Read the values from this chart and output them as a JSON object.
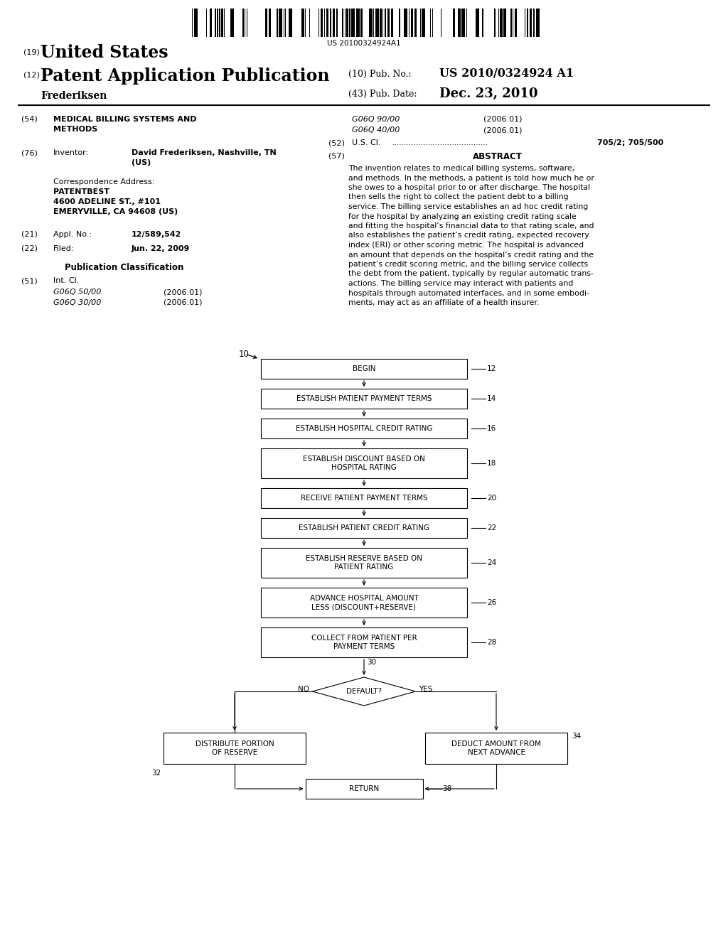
{
  "bg_color": "#ffffff",
  "barcode_text": "US 20100324924A1",
  "header_19_num": "(19)",
  "header_19_text": "United States",
  "header_12_num": "(12)",
  "header_12_text": "Patent Application Publication",
  "pub_no_label": "(10) Pub. No.:",
  "pub_no_value": "US 2010/0324924 A1",
  "author": "Frederiksen",
  "pub_date_label": "(43) Pub. Date:",
  "pub_date_value": "Dec. 23, 2010",
  "s54_num": "(54)",
  "s54_title1": "MEDICAL BILLING SYSTEMS AND",
  "s54_title2": "METHODS",
  "class1_code": "G06Q 90/00",
  "class1_year": "(2006.01)",
  "class2_code": "G06Q 40/00",
  "class2_year": "(2006.01)",
  "s52_num": "(52)",
  "s52_label": "U.S. Cl.",
  "s52_dots": "........................................",
  "s52_value": "705/2; 705/500",
  "s76_num": "(76)",
  "s76_label": "Inventor:",
  "s76_name1": "David Frederiksen, Nashville, TN",
  "s76_name2": "(US)",
  "corr_label": "Correspondence Address:",
  "corr1": "PATENTBEST",
  "corr2": "4600 ADELINE ST., #101",
  "corr3": "EMERYVILLE, CA 94608 (US)",
  "s57_num": "(57)",
  "s57_title": "ABSTRACT",
  "abstract_lines": [
    "The invention relates to medical billing systems, software,",
    "and methods. In the methods, a patient is told how much he or",
    "she owes to a hospital prior to or after discharge. The hospital",
    "then sells the right to collect the patient debt to a billing",
    "service. The billing service establishes an ad hoc credit rating",
    "for the hospital by analyzing an existing credit rating scale",
    "and fitting the hospital’s financial data to that rating scale, and",
    "also establishes the patient’s credit rating, expected recovery",
    "index (ERI) or other scoring metric. The hospital is advanced",
    "an amount that depends on the hospital’s credit rating and the",
    "patient’s credit scoring metric, and the billing service collects",
    "the debt from the patient, typically by regular automatic trans-",
    "actions. The billing service may interact with patients and",
    "hospitals through automated interfaces, and in some embodi-",
    "ments, may act as an affiliate of a health insurer."
  ],
  "s21_num": "(21)",
  "s21_label": "Appl. No.:",
  "s21_value": "12/589,542",
  "s22_num": "(22)",
  "s22_label": "Filed:",
  "s22_value": "Jun. 22, 2009",
  "pub_class_title": "Publication Classification",
  "s51_num": "(51)",
  "s51_label": "Int. Cl.",
  "s51_code1": "G06Q 50/00",
  "s51_year1": "(2006.01)",
  "s51_code2": "G06Q 30/00",
  "s51_year2": "(2006.01)",
  "flow_ref_10": "10",
  "flow_boxes": [
    {
      "label": "BEGIN",
      "ref": "12",
      "two_line": false
    },
    {
      "label": "ESTABLISH PATIENT PAYMENT TERMS",
      "ref": "14",
      "two_line": false
    },
    {
      "label": "ESTABLISH HOSPITAL CREDIT RATING",
      "ref": "16",
      "two_line": false
    },
    {
      "label": "ESTABLISH DISCOUNT BASED ON\nHOSPITAL RATING",
      "ref": "18",
      "two_line": true
    },
    {
      "label": "RECEIVE PATIENT PAYMENT TERMS",
      "ref": "20",
      "two_line": false
    },
    {
      "label": "ESTABLISH PATIENT CREDIT RATING",
      "ref": "22",
      "two_line": false
    },
    {
      "label": "ESTABLISH RESERVE BASED ON\nPATIENT RATING",
      "ref": "24",
      "two_line": true
    },
    {
      "label": "ADVANCE HOSPITAL AMOUNT\nLESS (DISCOUNT+RESERVE)",
      "ref": "26",
      "two_line": true
    },
    {
      "label": "COLLECT FROM PATIENT PER\nPAYMENT TERMS",
      "ref": "28",
      "two_line": true
    }
  ],
  "diamond_label": "DEFAULT?",
  "diamond_ref": "30",
  "no_label": "NO",
  "yes_label": "YES",
  "left_box_label": "DISTRIBUTE PORTION\nOF RESERVE",
  "left_box_ref": "32",
  "right_box_label": "DEDUCT AMOUNT FROM\nNEXT ADVANCE",
  "right_box_ref": "34",
  "return_label": "RETURN",
  "return_ref": "38"
}
